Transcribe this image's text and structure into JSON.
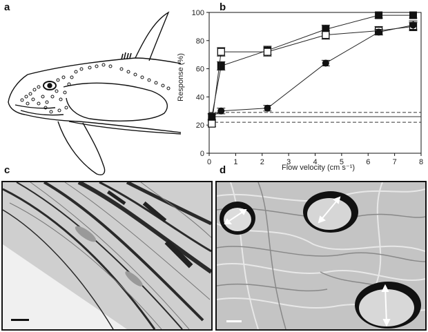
{
  "panels": {
    "a": "a",
    "b": "b",
    "c": "c",
    "d": "d"
  },
  "chart_data": {
    "type": "line",
    "xlabel": "Flow velocity (cm s⁻¹)",
    "ylabel": "Response (%)",
    "xlim": [
      0,
      8
    ],
    "ylim": [
      0,
      100
    ],
    "xticks": [
      "0",
      "1",
      "2",
      "3",
      "4",
      "5",
      "6",
      "7",
      "8"
    ],
    "yticks": [
      "0",
      "20",
      "40",
      "60",
      "80",
      "100"
    ],
    "grid": false,
    "legend": "none",
    "series": [
      {
        "marker": "square-filled",
        "x": [
          0.1,
          0.45,
          2.2,
          4.4,
          6.4,
          7.7
        ],
        "y": [
          26,
          62,
          73,
          88,
          98,
          98
        ],
        "err": [
          2,
          3,
          3,
          3,
          2,
          2
        ]
      },
      {
        "marker": "square-open",
        "x": [
          0.1,
          0.45,
          2.2,
          4.4,
          6.4,
          7.7
        ],
        "y": [
          21,
          72,
          72,
          84,
          87,
          90
        ],
        "err": [
          2,
          3,
          3,
          3,
          3,
          3
        ]
      },
      {
        "marker": "circle-filled",
        "x": [
          0.1,
          0.45,
          2.2,
          4.4,
          6.4,
          7.7
        ],
        "y": [
          26,
          30,
          32,
          64,
          86,
          91
        ],
        "err": [
          2,
          2,
          2,
          2,
          2,
          3
        ]
      }
    ],
    "reference_lines": [
      {
        "style": "solid",
        "y": 26
      },
      {
        "style": "dashed",
        "y": 29
      },
      {
        "style": "dashed",
        "y": 22
      }
    ]
  }
}
